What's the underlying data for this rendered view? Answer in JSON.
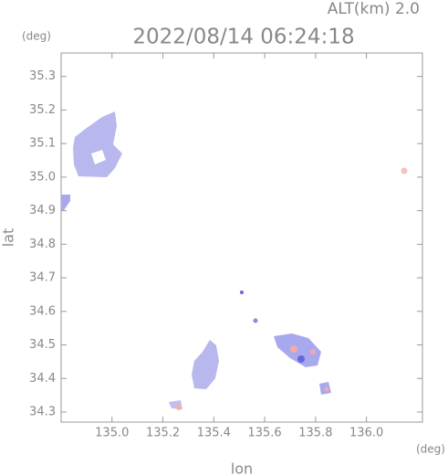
{
  "chart_data": {
    "type": "map",
    "altitude_label": "ALT(km) 2.0",
    "title": "2022/08/14 06:24:18",
    "y_unit": "(deg)",
    "x_unit": "(deg)",
    "ylabel": "lat",
    "xlabel": "lon",
    "xlim": [
      134.8,
      136.22
    ],
    "ylim": [
      34.27,
      35.37
    ],
    "xticks": [
      {
        "value": 135.0,
        "label": "135.0"
      },
      {
        "value": 135.2,
        "label": "135.2"
      },
      {
        "value": 135.4,
        "label": "135.4"
      },
      {
        "value": 135.6,
        "label": "135.6"
      },
      {
        "value": 135.8,
        "label": "135.8"
      },
      {
        "value": 136.0,
        "label": "136.0"
      }
    ],
    "yticks": [
      34.3,
      34.4,
      34.5,
      34.6,
      34.7,
      34.8,
      34.9,
      {
        "value": 35.0,
        "label": "35.0"
      },
      35.1,
      35.2,
      35.3
    ]
  }
}
